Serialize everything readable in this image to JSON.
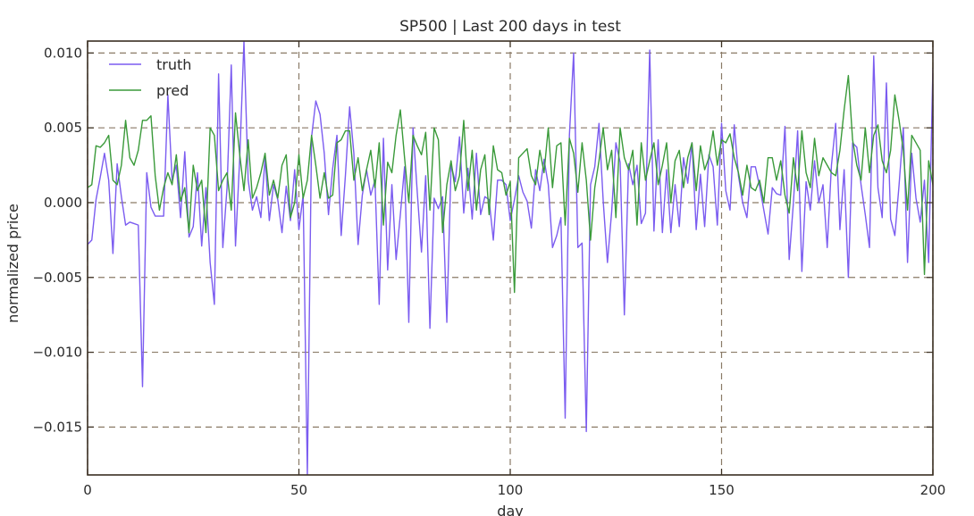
{
  "chart_data": {
    "type": "line",
    "title": "SP500 | Last 200 days in test",
    "xlabel": "day",
    "ylabel": "normalized price",
    "xlim": [
      0,
      200
    ],
    "ylim": [
      -0.0182,
      0.0108
    ],
    "x_ticks": [
      {
        "value": 0,
        "label": "0"
      },
      {
        "value": 50,
        "label": "50"
      },
      {
        "value": 100,
        "label": "100"
      },
      {
        "value": 150,
        "label": "150"
      },
      {
        "value": 200,
        "label": "200"
      }
    ],
    "y_ticks": [
      {
        "value": 0.01,
        "label": "0.010"
      },
      {
        "value": 0.005,
        "label": "0.005"
      },
      {
        "value": 0.0,
        "label": "0.000"
      },
      {
        "value": -0.005,
        "label": "−0.005"
      },
      {
        "value": -0.01,
        "label": "−0.010"
      },
      {
        "value": -0.015,
        "label": "−0.015"
      }
    ],
    "grid": true,
    "legend_position": "top-left",
    "x_step": 1,
    "series": [
      {
        "name": "truth",
        "color": "#7b5cf0",
        "values": [
          -0.0028,
          -0.0025,
          0.0002,
          0.0017,
          0.0033,
          0.0015,
          -0.0034,
          0.0026,
          0.0004,
          -0.0015,
          -0.0013,
          -0.0014,
          -0.0015,
          -0.0123,
          0.002,
          -0.0003,
          -0.0009,
          -0.0009,
          -0.0009,
          0.0072,
          0.0015,
          0.0025,
          -0.001,
          0.0034,
          -0.0023,
          -0.0016,
          0.002,
          -0.0029,
          0.001,
          -0.004,
          -0.0068,
          0.0086,
          -0.003,
          0.001,
          0.0092,
          -0.0029,
          0.003,
          0.0108,
          0.0015,
          -0.0005,
          0.0004,
          -0.001,
          0.003,
          -0.0012,
          0.0012,
          0.0002,
          -0.002,
          0.0011,
          -0.0012,
          0.0022,
          -0.0018,
          0.0005,
          -0.0182,
          0.0044,
          0.0068,
          0.0059,
          0.0033,
          -0.0008,
          0.0023,
          0.0045,
          -0.0022,
          0.0018,
          0.0064,
          0.0033,
          -0.0028,
          0.0005,
          0.0022,
          0.0005,
          0.0015,
          -0.0068,
          0.0043,
          -0.0045,
          0.0012,
          -0.0038,
          -0.0008,
          0.0024,
          -0.008,
          0.005,
          0.0007,
          -0.0033,
          0.0018,
          -0.0084,
          0.0003,
          -0.0004,
          0.0004,
          -0.008,
          0.0025,
          0.0014,
          0.0044,
          -0.0007,
          0.0023,
          -0.0011,
          0.0033,
          -0.0008,
          0.0004,
          0.0002,
          -0.0025,
          0.0015,
          0.0015,
          0.0012,
          -0.0012,
          0.0002,
          0.0018,
          0.0007,
          0.0001,
          -0.0017,
          0.0022,
          0.0008,
          0.0029,
          0.0012,
          -0.003,
          -0.0022,
          -0.001,
          -0.0144,
          0.0045,
          0.01,
          -0.003,
          -0.0027,
          -0.0153,
          0.0012,
          0.0024,
          0.0053,
          0.0001,
          -0.004,
          -0.0006,
          0.004,
          0.0027,
          -0.0075,
          0.0026,
          0.0012,
          0.0025,
          -0.0014,
          -0.0007,
          0.0102,
          -0.0019,
          0.0042,
          -0.002,
          0.0022,
          -0.002,
          0.0012,
          -0.0016,
          0.003,
          0.0013,
          0.004,
          -0.0018,
          0.0019,
          -0.0016,
          0.0032,
          0.0024,
          -0.0015,
          0.0053,
          0.0008,
          -0.0005,
          0.0052,
          0.0018,
          0.0,
          -0.001,
          0.0024,
          0.0024,
          0.0011,
          -0.0005,
          -0.0021,
          0.001,
          0.0006,
          0.0005,
          0.0051,
          -0.0038,
          0.0,
          0.0048,
          -0.0046,
          0.0014,
          -0.0005,
          0.0028,
          0.0,
          0.0012,
          -0.003,
          0.0025,
          0.0053,
          -0.0018,
          0.0022,
          -0.005,
          0.004,
          0.0037,
          0.0012,
          -0.0008,
          -0.003,
          0.0098,
          0.001,
          -0.001,
          0.008,
          -0.0011,
          -0.0022,
          0.0012,
          0.005,
          -0.004,
          0.0033,
          0.0003,
          -0.0013,
          0.0015,
          -0.004,
          0.009,
          0.0055
        ]
      },
      {
        "name": "pred",
        "color": "#3a9a3a",
        "values": [
          0.001,
          0.0012,
          0.0038,
          0.0037,
          0.004,
          0.0045,
          0.0015,
          0.0012,
          0.0025,
          0.0055,
          0.003,
          0.0025,
          0.0035,
          0.0055,
          0.0055,
          0.0058,
          0.0018,
          -0.0005,
          0.001,
          0.002,
          0.0012,
          0.0032,
          0.0001,
          0.001,
          -0.002,
          0.0025,
          0.0008,
          0.0015,
          -0.002,
          0.005,
          0.0045,
          0.0008,
          0.0015,
          0.002,
          -0.0005,
          0.006,
          0.0032,
          0.0008,
          0.0042,
          0.0003,
          0.001,
          0.002,
          0.0033,
          0.0005,
          0.0015,
          0.0003,
          0.0025,
          0.0032,
          -0.001,
          0.0,
          0.0032,
          0.0003,
          0.0015,
          0.0045,
          0.0025,
          0.0003,
          0.002,
          0.0003,
          0.0005,
          0.004,
          0.0042,
          0.0048,
          0.0048,
          0.0015,
          0.003,
          0.0008,
          0.0022,
          0.0035,
          0.001,
          0.004,
          -0.0015,
          0.0027,
          0.002,
          0.0045,
          0.0062,
          0.003,
          0.0,
          0.0045,
          0.0038,
          0.0032,
          0.0047,
          -0.0005,
          0.005,
          0.0042,
          -0.002,
          0.0012,
          0.0028,
          0.0008,
          0.0018,
          0.0055,
          0.0008,
          0.0035,
          -0.0005,
          0.0022,
          0.0032,
          -0.0008,
          0.0038,
          0.0022,
          0.002,
          0.0005,
          0.0014,
          -0.006,
          0.003,
          0.0033,
          0.0036,
          0.0018,
          0.0012,
          0.0035,
          0.002,
          0.005,
          0.001,
          0.0038,
          0.004,
          -0.0015,
          0.0043,
          0.0033,
          0.0007,
          0.004,
          0.0015,
          -0.0025,
          0.001,
          0.0028,
          0.005,
          0.0022,
          0.0035,
          -0.001,
          0.005,
          0.003,
          0.0022,
          0.0035,
          -0.0015,
          0.004,
          0.0015,
          0.0028,
          0.004,
          0.0012,
          0.0025,
          0.004,
          0.0,
          0.0028,
          0.0035,
          0.001,
          0.003,
          0.004,
          0.0008,
          0.0038,
          0.0022,
          0.003,
          0.0048,
          0.0025,
          0.0042,
          0.004,
          0.0046,
          0.003,
          0.002,
          0.0005,
          0.0025,
          0.001,
          0.0008,
          0.0015,
          0.0,
          0.003,
          0.003,
          0.0015,
          0.0028,
          0.0005,
          -0.0007,
          0.003,
          0.0008,
          0.0048,
          0.002,
          0.001,
          0.0043,
          0.0018,
          0.003,
          0.0025,
          0.002,
          0.0018,
          0.0035,
          0.0062,
          0.0085,
          0.0042,
          0.0025,
          0.0015,
          0.005,
          0.002,
          0.0045,
          0.0052,
          0.0028,
          0.002,
          0.0035,
          0.0072,
          0.0055,
          0.0035,
          -0.0005,
          0.0045,
          0.004,
          0.0035,
          -0.0048,
          0.0028,
          0.0012,
          0.003
        ]
      }
    ]
  }
}
